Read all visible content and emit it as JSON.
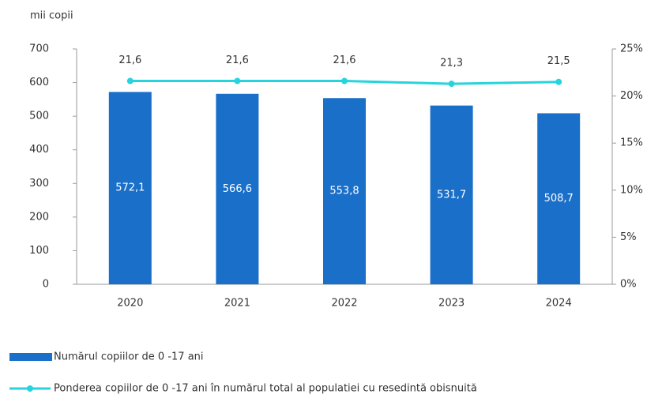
{
  "chart_data": {
    "type": "bar",
    "y_axis_label": "mii copii",
    "categories": [
      "2020",
      "2021",
      "2022",
      "2023",
      "2024"
    ],
    "series": [
      {
        "name": "Numărul copiilor de 0 -17 ani",
        "type": "bar",
        "color": "#1a6fc9",
        "values": [
          572.1,
          566.6,
          553.8,
          531.7,
          508.7
        ],
        "value_labels": [
          "572,1",
          "566,6",
          "553,8",
          "531,7",
          "508,7"
        ]
      },
      {
        "name": "Ponderea copiilor de 0 -17 ani în numărul total al populatiei cu resedintă obisnuită",
        "type": "line",
        "axis": "y2",
        "color": "#27d3dc",
        "values": [
          21.6,
          21.6,
          21.6,
          21.3,
          21.5
        ],
        "value_labels": [
          "21,6",
          "21,6",
          "21,6",
          "21,3",
          "21,5"
        ]
      }
    ],
    "ylim": [
      0,
      700
    ],
    "yticks": [
      0,
      100,
      200,
      300,
      400,
      500,
      600,
      700
    ],
    "y2lim": [
      0,
      25
    ],
    "y2ticks": [
      {
        "value": 0,
        "label": "0%"
      },
      {
        "value": 5,
        "label": "5%"
      },
      {
        "value": 10,
        "label": "10%"
      },
      {
        "value": 15,
        "label": "15%"
      },
      {
        "value": 20,
        "label": "20%"
      },
      {
        "value": 25,
        "label": "25%"
      }
    ],
    "legend": "bottom-left"
  }
}
